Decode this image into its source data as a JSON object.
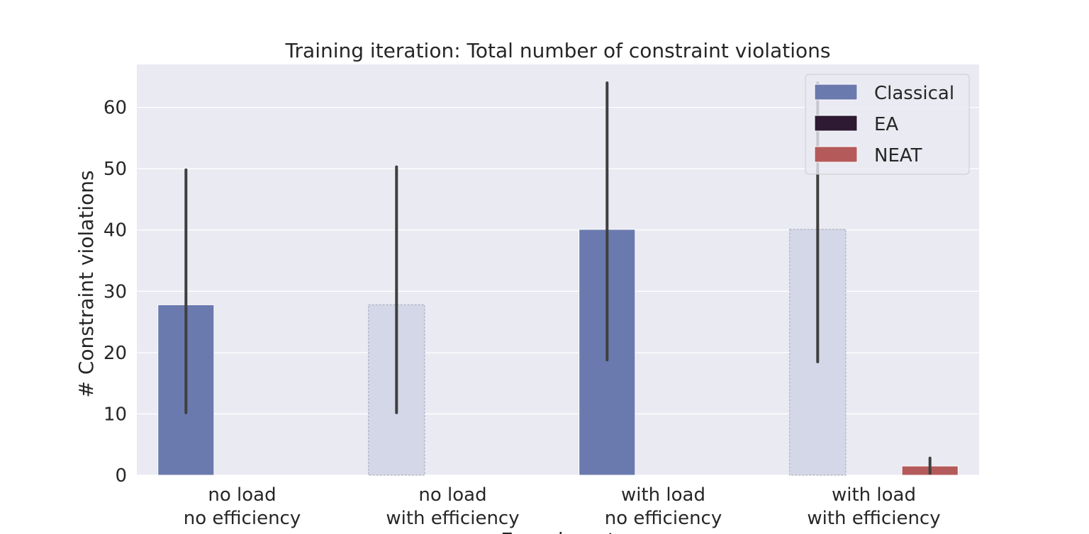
{
  "chart_data": {
    "type": "bar",
    "title": "Training iteration: Total number of constraint violations",
    "xlabel": "Experiment",
    "ylabel": "# Constraint violations",
    "ylim": [
      0,
      67
    ],
    "yticks": [
      0,
      10,
      20,
      30,
      40,
      50,
      60
    ],
    "grid": true,
    "legend_position": "top-right",
    "categories": [
      [
        "no load",
        "no efficiency"
      ],
      [
        "no load",
        "with efficiency"
      ],
      [
        "with load",
        "no efficiency"
      ],
      [
        "with load",
        "with efficiency"
      ]
    ],
    "series": [
      {
        "name": "Classical",
        "color": "#6b7aae",
        "values": [
          27.8,
          27.8,
          40.1,
          40.1
        ],
        "error_low": [
          10.2,
          10.2,
          18.8,
          18.5
        ],
        "error_high": [
          49.8,
          50.3,
          64.0,
          64.0
        ],
        "faded": [
          false,
          true,
          false,
          true
        ]
      },
      {
        "name": "EA",
        "color": "#2e1a33",
        "values": [
          0,
          0,
          0,
          0
        ],
        "error_low": [
          null,
          null,
          null,
          null
        ],
        "error_high": [
          null,
          null,
          null,
          null
        ],
        "faded": [
          false,
          false,
          false,
          false
        ]
      },
      {
        "name": "NEAT",
        "color": "#b55a5a",
        "values": [
          0,
          0,
          0,
          1.5
        ],
        "error_low": [
          null,
          null,
          null,
          0.3
        ],
        "error_high": [
          null,
          null,
          null,
          2.8
        ],
        "faded": [
          false,
          false,
          false,
          false
        ]
      }
    ]
  }
}
